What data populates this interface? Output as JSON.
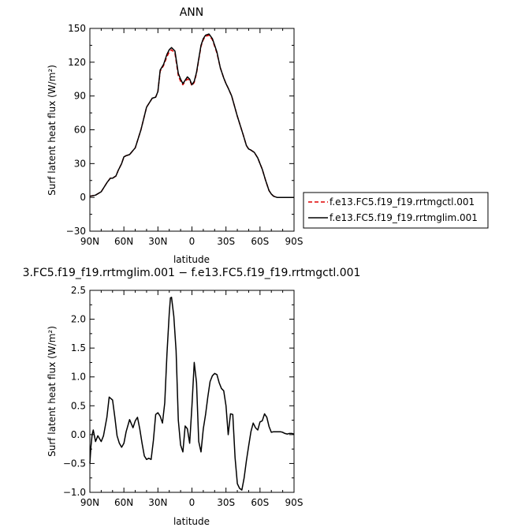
{
  "chart_data": [
    {
      "type": "line",
      "title": "ANN",
      "xlabel": "latitude",
      "ylabel": "Surf latent heat flux (W/m²)",
      "x_tick_labels": [
        "90N",
        "60N",
        "30N",
        "0",
        "30S",
        "60S",
        "90S"
      ],
      "x_tick_values": [
        90,
        60,
        30,
        0,
        -30,
        -60,
        -90
      ],
      "xlim": [
        90,
        -90
      ],
      "y_tick_labels": [
        "150",
        "120",
        "90",
        "60",
        "30",
        "0",
        "−30"
      ],
      "ylim": [
        -30,
        150
      ],
      "x": [
        90,
        85,
        80,
        75,
        72,
        70,
        67,
        65,
        62,
        60,
        58,
        55,
        50,
        45,
        40,
        35,
        32,
        30,
        28,
        25,
        22,
        20,
        18,
        15,
        12,
        10,
        8,
        6,
        4,
        2,
        0,
        -2,
        -4,
        -6,
        -8,
        -10,
        -12,
        -15,
        -18,
        -20,
        -22,
        -25,
        -28,
        -30,
        -32,
        -35,
        -40,
        -45,
        -48,
        -50,
        -52,
        -55,
        -58,
        -60,
        -62,
        -65,
        -68,
        -70,
        -72,
        -75,
        -80,
        -85,
        -90
      ],
      "series": [
        {
          "name": "f.e13.FC5.f19_f19.rrtmgctl.001",
          "color": "#e00000",
          "style": "dashed",
          "values": [
            1,
            2,
            5,
            13,
            17,
            17,
            19,
            24,
            30,
            36,
            37,
            38,
            44,
            60,
            80,
            88,
            89,
            94,
            112,
            117,
            125,
            129,
            131,
            128,
            108,
            103,
            100,
            103,
            105,
            104,
            99,
            102,
            110,
            122,
            134,
            140,
            143,
            144,
            140,
            134,
            128,
            115,
            106,
            101,
            97,
            90,
            72,
            56,
            46,
            43,
            42,
            40,
            35,
            30,
            25,
            15,
            6,
            3,
            1,
            0,
            0,
            0,
            0
          ]
        },
        {
          "name": "f.e13.FC5.f19_f19.rrtmglim.001",
          "color": "#000000",
          "style": "solid",
          "values": [
            1,
            2,
            5,
            13,
            17,
            17,
            19,
            24,
            30,
            36,
            37,
            38,
            44,
            60,
            80,
            88,
            89,
            94,
            113,
            118,
            127,
            131,
            133,
            130,
            110,
            105,
            101,
            104,
            107,
            105,
            100,
            103,
            111,
            123,
            135,
            141,
            144,
            145,
            141,
            135,
            129,
            115,
            106,
            101,
            97,
            90,
            72,
            56,
            46,
            43,
            42,
            40,
            35,
            30,
            25,
            15,
            6,
            3,
            1,
            0,
            0,
            0,
            0
          ]
        }
      ],
      "legend_position": "right",
      "grid": false
    },
    {
      "type": "line",
      "title": "3.FC5.f19_f19.rrtmglim.001 − f.e13.FC5.f19_f19.rrtmgctl.001",
      "xlabel": "latitude",
      "ylabel": "Surf latent heat flux (W/m²)",
      "x_tick_labels": [
        "90N",
        "60N",
        "30N",
        "0",
        "30S",
        "60S",
        "90S"
      ],
      "x_tick_values": [
        90,
        60,
        30,
        0,
        -30,
        -60,
        -90
      ],
      "xlim": [
        90,
        -90
      ],
      "y_tick_labels": [
        "2.5",
        "2.0",
        "1.5",
        "1.0",
        "0.5",
        "0.0",
        "−0.5",
        "−1.0"
      ],
      "ylim": [
        -1.0,
        2.5
      ],
      "x": [
        90,
        89,
        88,
        87,
        85,
        83,
        80,
        78,
        75,
        73,
        70,
        68,
        66,
        64,
        62,
        60,
        58,
        55,
        52,
        50,
        48,
        46,
        44,
        42,
        40,
        38,
        36,
        34,
        32,
        30,
        28,
        26,
        24,
        22,
        20,
        19,
        18,
        16,
        14,
        12,
        10,
        8,
        6,
        4,
        2,
        0,
        -2,
        -4,
        -6,
        -8,
        -10,
        -12,
        -14,
        -16,
        -18,
        -20,
        -22,
        -24,
        -26,
        -28,
        -30,
        -32,
        -34,
        -36,
        -38,
        -40,
        -42,
        -44,
        -46,
        -48,
        -50,
        -52,
        -54,
        -56,
        -58,
        -60,
        -62,
        -64,
        -66,
        -68,
        -70,
        -72,
        -75,
        -78,
        -80,
        -82,
        -84,
        -86,
        -88,
        -90
      ],
      "series": [
        {
          "name": "",
          "color": "#000000",
          "style": "solid",
          "values": [
            -0.5,
            -0.2,
            0.0,
            0.08,
            -0.12,
            -0.02,
            -0.12,
            -0.02,
            0.3,
            0.65,
            0.6,
            0.3,
            -0.02,
            -0.15,
            -0.22,
            -0.15,
            0.05,
            0.26,
            0.12,
            0.24,
            0.3,
            0.1,
            -0.15,
            -0.37,
            -0.43,
            -0.41,
            -0.43,
            -0.1,
            0.35,
            0.38,
            0.32,
            0.2,
            0.55,
            1.4,
            2.1,
            2.37,
            2.38,
            2.05,
            1.45,
            0.25,
            -0.18,
            -0.3,
            0.15,
            0.1,
            -0.15,
            0.5,
            1.25,
            0.9,
            -0.12,
            -0.3,
            0.1,
            0.35,
            0.65,
            0.92,
            1.02,
            1.06,
            1.04,
            0.9,
            0.8,
            0.76,
            0.5,
            0.0,
            0.36,
            0.35,
            -0.4,
            -0.85,
            -0.93,
            -0.96,
            -0.75,
            -0.45,
            -0.2,
            0.05,
            0.2,
            0.12,
            0.08,
            0.22,
            0.24,
            0.36,
            0.3,
            0.14,
            0.04,
            0.05,
            0.05,
            0.05,
            0.04,
            0.02,
            0.01,
            0.02,
            0.02,
            0.01
          ]
        }
      ],
      "grid": false
    }
  ]
}
